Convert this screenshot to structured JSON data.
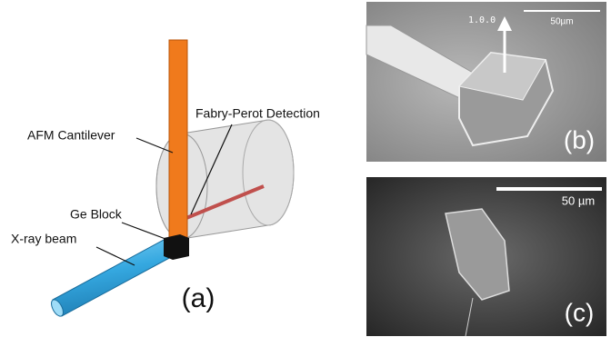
{
  "panel_a": {
    "labels": {
      "cantilever": "AFM Cantilever",
      "detection": "Fabry-Perot Detection",
      "block": "Ge Block",
      "beam": "X-ray beam"
    },
    "caption": "(a)"
  },
  "panel_b": {
    "direction": "1.0.0",
    "scale_bar": "50µm",
    "caption": "(b)"
  },
  "panel_c": {
    "scale_bar": "50 µm",
    "caption": "(c)"
  }
}
